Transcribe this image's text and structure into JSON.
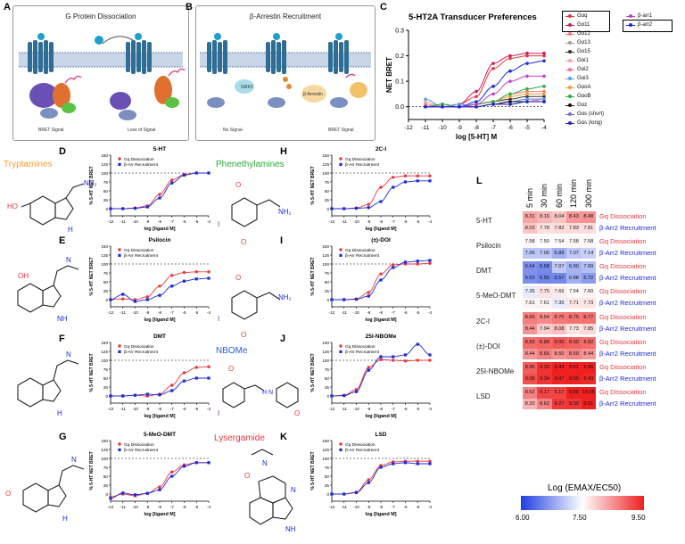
{
  "panel_letters": {
    "A": "A",
    "B": "B",
    "C": "C",
    "D": "D",
    "E": "E",
    "F": "F",
    "G": "G",
    "H": "H",
    "I": "I",
    "J": "J",
    "K": "K",
    "L": "L"
  },
  "panelA": {
    "title": "G Protein Dissociation",
    "cap_left": "BRET Signal",
    "cap_right": "Loss of Signal"
  },
  "panelB": {
    "title": "β-Arrestin Recruitment",
    "cap_left": "No Signal",
    "cap_right": "BRET Signal",
    "grk": "GRK2",
    "barr": "β-Arrestin"
  },
  "classes": {
    "tryptamines": "Tryptamines",
    "phenethylamines": "Phenethylamines",
    "nbome": "NBOMe",
    "lysergamide": "Lysergamide"
  },
  "panelC": {
    "title": "5-HT2A Transducer Preferences",
    "ylabel": "NET BRET",
    "xlabel": "log [5-HT] M",
    "legend_left": [
      "Gαq",
      "Gα11",
      "Gα12",
      "Gα13",
      "Gα15",
      "Gαi1",
      "Gαi2",
      "Gαi3",
      "GαoA",
      "GαoB",
      "Gαz",
      "Gαs (short)",
      "Gαs (long)"
    ],
    "legend_right": [
      "β-arr1",
      "β-arr2"
    ]
  },
  "chart_data": [
    {
      "id": "C",
      "type": "line",
      "title": "5-HT2A Transducer Preferences",
      "xlabel": "log [5-HT] M",
      "ylabel": "NET BRET",
      "xlim": [
        -12,
        -4
      ],
      "ylim": [
        -0.05,
        0.3
      ],
      "xticks": [
        "-12",
        "-11",
        "-10",
        "-9",
        "-8",
        "-7",
        "-6",
        "-5",
        "-4"
      ],
      "yticks": [
        "0.0",
        "0.1",
        "0.2",
        "0.3"
      ],
      "x": [
        -11,
        -10,
        -9,
        -8,
        -7,
        -6,
        -5,
        -4
      ],
      "series": [
        {
          "name": "Gαq",
          "color": "#e8383d",
          "values": [
            0.0,
            0.0,
            0.01,
            0.04,
            0.15,
            0.19,
            0.2,
            0.2
          ]
        },
        {
          "name": "Gα11",
          "color": "#c81d5e",
          "values": [
            0.0,
            0.0,
            0.01,
            0.06,
            0.17,
            0.2,
            0.21,
            0.21
          ]
        },
        {
          "name": "Gα12",
          "color": "#f07c85",
          "values": [
            0.01,
            0.0,
            0.0,
            0.01,
            0.02,
            0.05,
            0.06,
            0.06
          ]
        },
        {
          "name": "Gα13",
          "color": "#9e9e9e",
          "values": [
            0.0,
            0.01,
            0.0,
            0.0,
            0.01,
            0.02,
            0.03,
            0.03
          ]
        },
        {
          "name": "Gα15",
          "color": "#333333",
          "values": [
            0.0,
            0.0,
            0.0,
            0.01,
            0.02,
            0.03,
            0.04,
            0.04
          ]
        },
        {
          "name": "Gαi1",
          "color": "#f4a3a8",
          "values": [
            0.02,
            0.0,
            0.01,
            0.0,
            0.01,
            0.02,
            0.03,
            0.02
          ]
        },
        {
          "name": "Gαi2",
          "color": "#f06fb0",
          "values": [
            0.0,
            0.01,
            0.0,
            0.0,
            0.01,
            0.02,
            0.02,
            0.03
          ]
        },
        {
          "name": "Gαi3",
          "color": "#5aa0e0",
          "values": [
            0.03,
            0.0,
            0.01,
            0.0,
            0.01,
            0.02,
            0.03,
            0.03
          ]
        },
        {
          "name": "GαoA",
          "color": "#f39c33",
          "values": [
            0.0,
            0.0,
            0.0,
            0.01,
            0.02,
            0.04,
            0.05,
            0.05
          ]
        },
        {
          "name": "GαoB",
          "color": "#2eaa3a",
          "values": [
            0.0,
            0.01,
            0.0,
            0.01,
            0.02,
            0.05,
            0.07,
            0.08
          ]
        },
        {
          "name": "Gαz",
          "color": "#111111",
          "values": [
            0.0,
            0.0,
            0.0,
            0.0,
            0.01,
            0.02,
            0.02,
            0.02
          ]
        },
        {
          "name": "Gαs (short)",
          "color": "#7b68c8",
          "values": [
            0.0,
            0.0,
            0.0,
            0.0,
            0.01,
            0.01,
            0.02,
            0.02
          ]
        },
        {
          "name": "Gαs (long)",
          "color": "#2626c8",
          "values": [
            0.0,
            0.0,
            0.0,
            0.0,
            0.01,
            0.01,
            0.02,
            0.02
          ]
        },
        {
          "name": "β-arr1",
          "color": "#c040c0",
          "values": [
            0.0,
            0.0,
            0.0,
            0.01,
            0.05,
            0.1,
            0.12,
            0.12
          ]
        },
        {
          "name": "β-arr2",
          "color": "#1f2ad6",
          "values": [
            0.0,
            0.0,
            0.0,
            0.02,
            0.08,
            0.14,
            0.17,
            0.18
          ]
        }
      ]
    },
    {
      "id": "D",
      "type": "line",
      "title": "5-HT",
      "xlabel": "log [ligand M]",
      "ylabel": "% 5-HT NET BRET",
      "xlim": [
        -12,
        -4
      ],
      "ylim": [
        -20,
        150
      ],
      "x": [
        -12,
        -11,
        -10,
        -9,
        -8,
        -7,
        -6,
        -5,
        -4
      ],
      "series": [
        {
          "name": "Gq Dissociation",
          "color": "#e8383d",
          "values": [
            0,
            0,
            2,
            8,
            40,
            80,
            96,
            100,
            100
          ]
        },
        {
          "name": "β-Arr Recruitment",
          "color": "#1f2ad6",
          "values": [
            0,
            0,
            1,
            5,
            30,
            72,
            94,
            100,
            100
          ]
        }
      ]
    },
    {
      "id": "E",
      "type": "line",
      "title": "Psilocin",
      "xlabel": "log [ligand M]",
      "ylabel": "% 5-HT NET BRET",
      "xlim": [
        -12,
        -4
      ],
      "ylim": [
        -20,
        150
      ],
      "x": [
        -12,
        -11,
        -10,
        -9,
        -8,
        -7,
        -6,
        -5,
        -4
      ],
      "series": [
        {
          "name": "Gq Dissociation",
          "color": "#e8383d",
          "values": [
            0,
            2,
            0,
            8,
            38,
            68,
            76,
            78,
            78
          ]
        },
        {
          "name": "β-Arr Recruitment",
          "color": "#1f2ad6",
          "values": [
            0,
            15,
            -5,
            0,
            12,
            38,
            52,
            58,
            60
          ]
        }
      ]
    },
    {
      "id": "F",
      "type": "line",
      "title": "DMT",
      "xlabel": "log [ligand M]",
      "ylabel": "% 5-HT NET BRET",
      "xlim": [
        -12,
        -4
      ],
      "ylim": [
        -20,
        150
      ],
      "x": [
        -12,
        -11,
        -10,
        -9,
        -8,
        -7,
        -6,
        -5,
        -4
      ],
      "series": [
        {
          "name": "Gq Dissociation",
          "color": "#e8383d",
          "values": [
            0,
            0,
            2,
            0,
            5,
            30,
            65,
            80,
            82
          ]
        },
        {
          "name": "β-Arr Recruitment",
          "color": "#1f2ad6",
          "values": [
            0,
            0,
            2,
            5,
            3,
            15,
            42,
            50,
            50
          ]
        }
      ]
    },
    {
      "id": "G",
      "type": "line",
      "title": "5-MeO-DMT",
      "xlabel": "log [ligand M]",
      "ylabel": "% 5-HT NET BRET",
      "xlim": [
        -12,
        -4
      ],
      "ylim": [
        -20,
        150
      ],
      "x": [
        -12,
        -11,
        -10,
        -9,
        -8,
        -7,
        -6,
        -5,
        -4
      ],
      "series": [
        {
          "name": "Gq Dissociation",
          "color": "#e8383d",
          "values": [
            -8,
            0,
            -5,
            2,
            20,
            62,
            82,
            88,
            88
          ]
        },
        {
          "name": "β-Arr Recruitment",
          "color": "#1f2ad6",
          "values": [
            -12,
            3,
            -2,
            2,
            12,
            50,
            78,
            88,
            88
          ]
        }
      ]
    },
    {
      "id": "H",
      "type": "line",
      "title": "2C-I",
      "xlabel": "log [ligand M]",
      "ylabel": "% 5-HT NET BRET",
      "xlim": [
        -12,
        -4
      ],
      "ylim": [
        -20,
        150
      ],
      "x": [
        -12,
        -11,
        -10,
        -9,
        -8,
        -7,
        -6,
        -5,
        -4
      ],
      "series": [
        {
          "name": "Gq Dissociation",
          "color": "#e8383d",
          "values": [
            0,
            0,
            2,
            12,
            60,
            88,
            92,
            92,
            92
          ]
        },
        {
          "name": "β-Arr Recruitment",
          "color": "#1f2ad6",
          "values": [
            0,
            0,
            1,
            3,
            20,
            60,
            75,
            78,
            78
          ]
        }
      ]
    },
    {
      "id": "I",
      "type": "line",
      "title": "(±)-DOI",
      "xlabel": "log [ligand M]",
      "ylabel": "% 5-HT NET BRET",
      "xlim": [
        -12,
        -4
      ],
      "ylim": [
        -20,
        150
      ],
      "x": [
        -12,
        -11,
        -10,
        -9,
        -8,
        -7,
        -6,
        -5,
        -4
      ],
      "series": [
        {
          "name": "Gq Dissociation",
          "color": "#e8383d",
          "values": [
            0,
            0,
            2,
            20,
            72,
            98,
            100,
            100,
            102
          ]
        },
        {
          "name": "β-Arr Recruitment",
          "color": "#1f2ad6",
          "values": [
            0,
            0,
            1,
            10,
            55,
            90,
            105,
            108,
            110
          ]
        }
      ]
    },
    {
      "id": "J",
      "type": "line",
      "title": "25I-NBOMe",
      "xlabel": "log [ligand M]",
      "ylabel": "% 5-HT NET BRET",
      "xlim": [
        -12,
        -4
      ],
      "ylim": [
        -20,
        150
      ],
      "x": [
        -12,
        -11,
        -10,
        -9,
        -8,
        -7,
        -6,
        -5,
        -4
      ],
      "series": [
        {
          "name": "Gq Dissociation",
          "color": "#e8383d",
          "values": [
            0,
            2,
            18,
            80,
            102,
            100,
            98,
            100,
            100
          ]
        },
        {
          "name": "β-Arr Recruitment",
          "color": "#1f2ad6",
          "values": [
            0,
            1,
            12,
            72,
            110,
            110,
            115,
            145,
            115
          ]
        }
      ]
    },
    {
      "id": "K",
      "type": "line",
      "title": "LSD",
      "xlabel": "log [ligand M]",
      "ylabel": "% 5-HT NET BRET",
      "xlim": [
        -12,
        -4
      ],
      "ylim": [
        -20,
        150
      ],
      "x": [
        -12,
        -11,
        -10,
        -9,
        -8,
        -7,
        -6,
        -5,
        -4
      ],
      "series": [
        {
          "name": "Gq Dissociation",
          "color": "#e8383d",
          "values": [
            0,
            0,
            5,
            40,
            80,
            90,
            92,
            92,
            92
          ]
        },
        {
          "name": "β-Arr Recruitment",
          "color": "#1f2ad6",
          "values": [
            0,
            0,
            4,
            32,
            75,
            85,
            88,
            85,
            85
          ]
        }
      ]
    },
    {
      "id": "L",
      "type": "heatmap",
      "title": "Log (EMAX/EC50)",
      "columns": [
        "5 min",
        "30 min",
        "60 min",
        "120 min",
        "300 min"
      ],
      "rows": [
        {
          "ligand": "5-HT",
          "assay": "Gq Dissociation",
          "values": [
            8.31,
            8.16,
            8.04,
            8.43,
            8.48
          ]
        },
        {
          "ligand": "5-HT",
          "assay": "β-Arr2 Recruitment",
          "values": [
            8.03,
            7.78,
            7.82,
            7.83,
            7.81
          ]
        },
        {
          "ligand": "Psilocin",
          "assay": "Gq Dissociation",
          "values": [
            7.58,
            7.5,
            7.54,
            7.58,
            7.58
          ]
        },
        {
          "ligand": "Psilocin",
          "assay": "β-Arr2 Recruitment",
          "values": [
            7.06,
            7.06,
            6.88,
            7.07,
            7.14
          ]
        },
        {
          "ligand": "DMT",
          "assay": "Gq Dissociation",
          "values": [
            6.64,
            6.58,
            7.07,
            6.9,
            7.0
          ]
        },
        {
          "ligand": "DMT",
          "assay": "β-Arr2 Recruitment",
          "values": [
            6.63,
            6.55,
            6.57,
            6.88,
            6.72
          ]
        },
        {
          "ligand": "5-MeO-DMT",
          "assay": "Gq Dissociation",
          "values": [
            7.35,
            7.75,
            7.66,
            7.54,
            7.6
          ]
        },
        {
          "ligand": "5-MeO-DMT",
          "assay": "β-Arr2 Recruitment",
          "values": [
            7.61,
            7.61,
            7.35,
            7.71,
            7.73
          ]
        },
        {
          "ligand": "2C-I",
          "assay": "Gq Dissociation",
          "values": [
            8.66,
            8.54,
            8.7,
            8.75,
            8.77
          ]
        },
        {
          "ligand": "2C-I",
          "assay": "β-Arr2 Recruitment",
          "values": [
            8.44,
            7.94,
            8.08,
            7.73,
            7.85
          ]
        },
        {
          "ligand": "(±)-DOI",
          "assay": "Gq Dissociation",
          "values": [
            8.83,
            8.88,
            9.0,
            8.9,
            8.82
          ]
        },
        {
          "ligand": "(±)-DOI",
          "assay": "β-Arr2 Recruitment",
          "values": [
            8.44,
            8.66,
            8.5,
            8.59,
            8.44
          ]
        },
        {
          "ligand": "25I-NBOMe",
          "assay": "Gq Dissociation",
          "values": [
            8.95,
            9.33,
            9.49,
            9.61,
            9.96
          ]
        },
        {
          "ligand": "25I-NBOMe",
          "assay": "β-Arr2 Recruitment",
          "values": [
            9.08,
            9.34,
            9.47,
            9.5,
            9.43
          ]
        },
        {
          "ligand": "LSD",
          "assay": "Gq Dissociation",
          "values": [
            8.62,
            9.17,
            9.17,
            9.86,
            10.08
          ]
        },
        {
          "ligand": "LSD",
          "assay": "β-Arr2 Recruitment",
          "values": [
            8.2,
            8.62,
            9.27,
            9.3,
            9.51
          ]
        }
      ],
      "colorbar": {
        "min": 6.0,
        "mid": 7.5,
        "max": 9.5,
        "ticks": [
          "6.00",
          "7.50",
          "9.50"
        ],
        "low_color": "#1f3fe0",
        "mid_color": "#ffffff",
        "high_color": "#ee2020"
      }
    }
  ],
  "dose_common": {
    "ylabel": "% 5-HT NET BRET",
    "xlabel": "log [ligand M]",
    "legend_gq": "Gq Dissociation",
    "legend_arr": "β-Arr Recruitment",
    "xticks": [
      "-12",
      "-11",
      "-10",
      "-9",
      "-8",
      "-7",
      "-6",
      "-5",
      "-4"
    ],
    "yticks": [
      "0",
      "25",
      "50",
      "75",
      "100",
      "125",
      "150"
    ]
  },
  "heatmap_labels": {
    "ligands": [
      "5-HT",
      "Psilocin",
      "DMT",
      "5-MeO-DMT",
      "2C-I",
      "(±)-DOI",
      "25I-NBOMe",
      "LSD"
    ],
    "gq": "Gq Dissociation",
    "arr": "β-Arr2 Recruitment",
    "colorbar_title": "Log (EMAX/EC50)"
  },
  "colors": {
    "gq": "#e8383d",
    "arr": "#1f2ad6",
    "tryptamines": "#f39c33",
    "phenethylamines": "#2eaa3a",
    "nbome": "#1f5fd6",
    "lysergamide": "#e8383d"
  }
}
